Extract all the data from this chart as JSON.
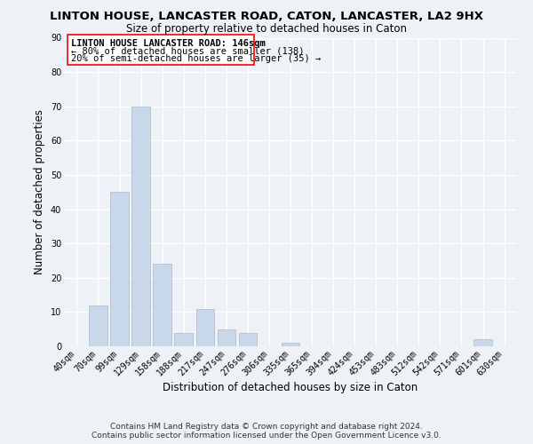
{
  "title": "LINTON HOUSE, LANCASTER ROAD, CATON, LANCASTER, LA2 9HX",
  "subtitle": "Size of property relative to detached houses in Caton",
  "xlabel": "Distribution of detached houses by size in Caton",
  "ylabel": "Number of detached properties",
  "bin_labels": [
    "40sqm",
    "70sqm",
    "99sqm",
    "129sqm",
    "158sqm",
    "188sqm",
    "217sqm",
    "247sqm",
    "276sqm",
    "306sqm",
    "335sqm",
    "365sqm",
    "394sqm",
    "424sqm",
    "453sqm",
    "483sqm",
    "512sqm",
    "542sqm",
    "571sqm",
    "601sqm",
    "630sqm"
  ],
  "bar_heights": [
    0,
    12,
    45,
    70,
    24,
    4,
    11,
    5,
    4,
    0,
    1,
    0,
    0,
    0,
    0,
    0,
    0,
    0,
    0,
    2,
    0
  ],
  "bar_color": "#c8d8ea",
  "bar_edge_color": "#aabbcc",
  "ylim": [
    0,
    90
  ],
  "yticks": [
    0,
    10,
    20,
    30,
    40,
    50,
    60,
    70,
    80,
    90
  ],
  "annotation_line1": "LINTON HOUSE LANCASTER ROAD: 146sqm",
  "annotation_line2": "← 80% of detached houses are smaller (138)",
  "annotation_line3": "20% of semi-detached houses are larger (35) →",
  "footer_line1": "Contains HM Land Registry data © Crown copyright and database right 2024.",
  "footer_line2": "Contains public sector information licensed under the Open Government Licence v3.0.",
  "background_color": "#eef2f7",
  "grid_color": "#ffffff",
  "title_fontsize": 9.5,
  "subtitle_fontsize": 8.5,
  "axis_label_fontsize": 8.5,
  "tick_fontsize": 7,
  "annotation_fontsize": 7.5,
  "footer_fontsize": 6.5
}
